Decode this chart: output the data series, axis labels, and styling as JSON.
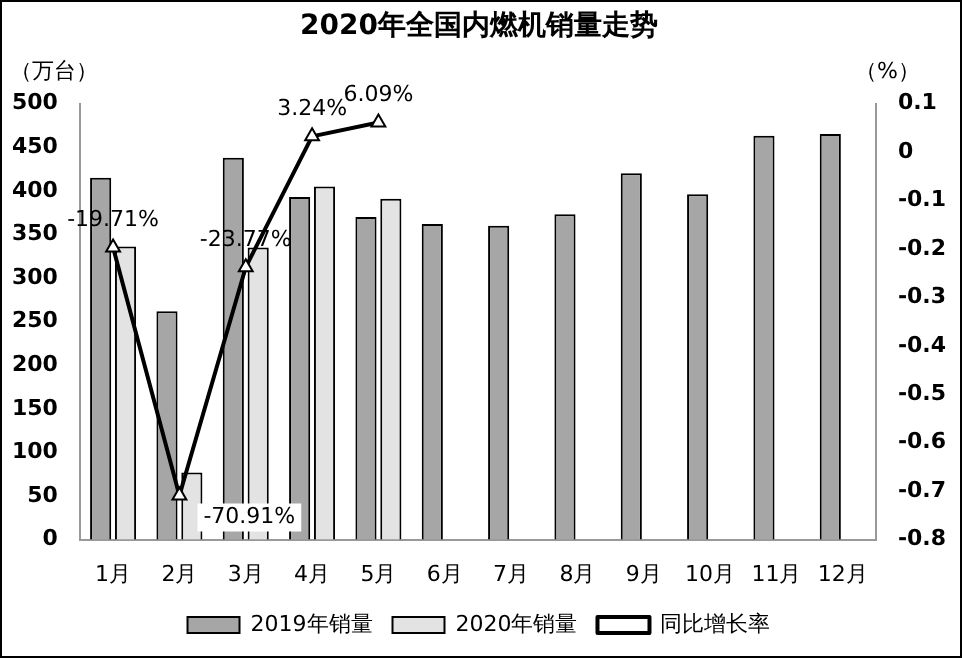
{
  "chart_data": {
    "type": "bar",
    "title": "2020年全国内燃机销量走势",
    "ylabel": "（万台）",
    "y2label": "（%）",
    "categories": [
      "1月",
      "2月",
      "3月",
      "4月",
      "5月",
      "6月",
      "7月",
      "8月",
      "9月",
      "10月",
      "11月",
      "12月"
    ],
    "series": [
      {
        "name": "2019年销量",
        "color": "#a6a6a6",
        "values": [
          415,
          262,
          438,
          393,
          370,
          362,
          360,
          373,
          420,
          396,
          463,
          465
        ]
      },
      {
        "name": "2020年销量",
        "color": "#e3e3e3",
        "values": [
          336,
          77,
          335,
          405,
          391,
          null,
          null,
          null,
          null,
          null,
          null,
          null
        ]
      },
      {
        "name": "同比增长率",
        "type": "line",
        "axis": "y2",
        "color": "#000000",
        "marker": "triangle",
        "values": [
          -0.1971,
          -0.7091,
          -0.2377,
          0.0324,
          0.0609,
          null,
          null,
          null,
          null,
          null,
          null,
          null
        ],
        "value_labels": [
          "-19.71%",
          "-70.91%",
          "-23.77%",
          "3.24%",
          "6.09%",
          null,
          null,
          null,
          null,
          null,
          null,
          null
        ]
      }
    ],
    "ylim": [
      0,
      500
    ],
    "yticks": [
      0,
      50,
      100,
      150,
      200,
      250,
      300,
      350,
      400,
      450,
      500
    ],
    "y2lim": [
      -0.8,
      0.1
    ],
    "y2ticks": [
      -0.8,
      -0.7,
      -0.6,
      -0.5,
      -0.4,
      -0.3,
      -0.2,
      -0.1,
      0,
      0.1
    ],
    "grid": false,
    "legend": "bottom"
  }
}
